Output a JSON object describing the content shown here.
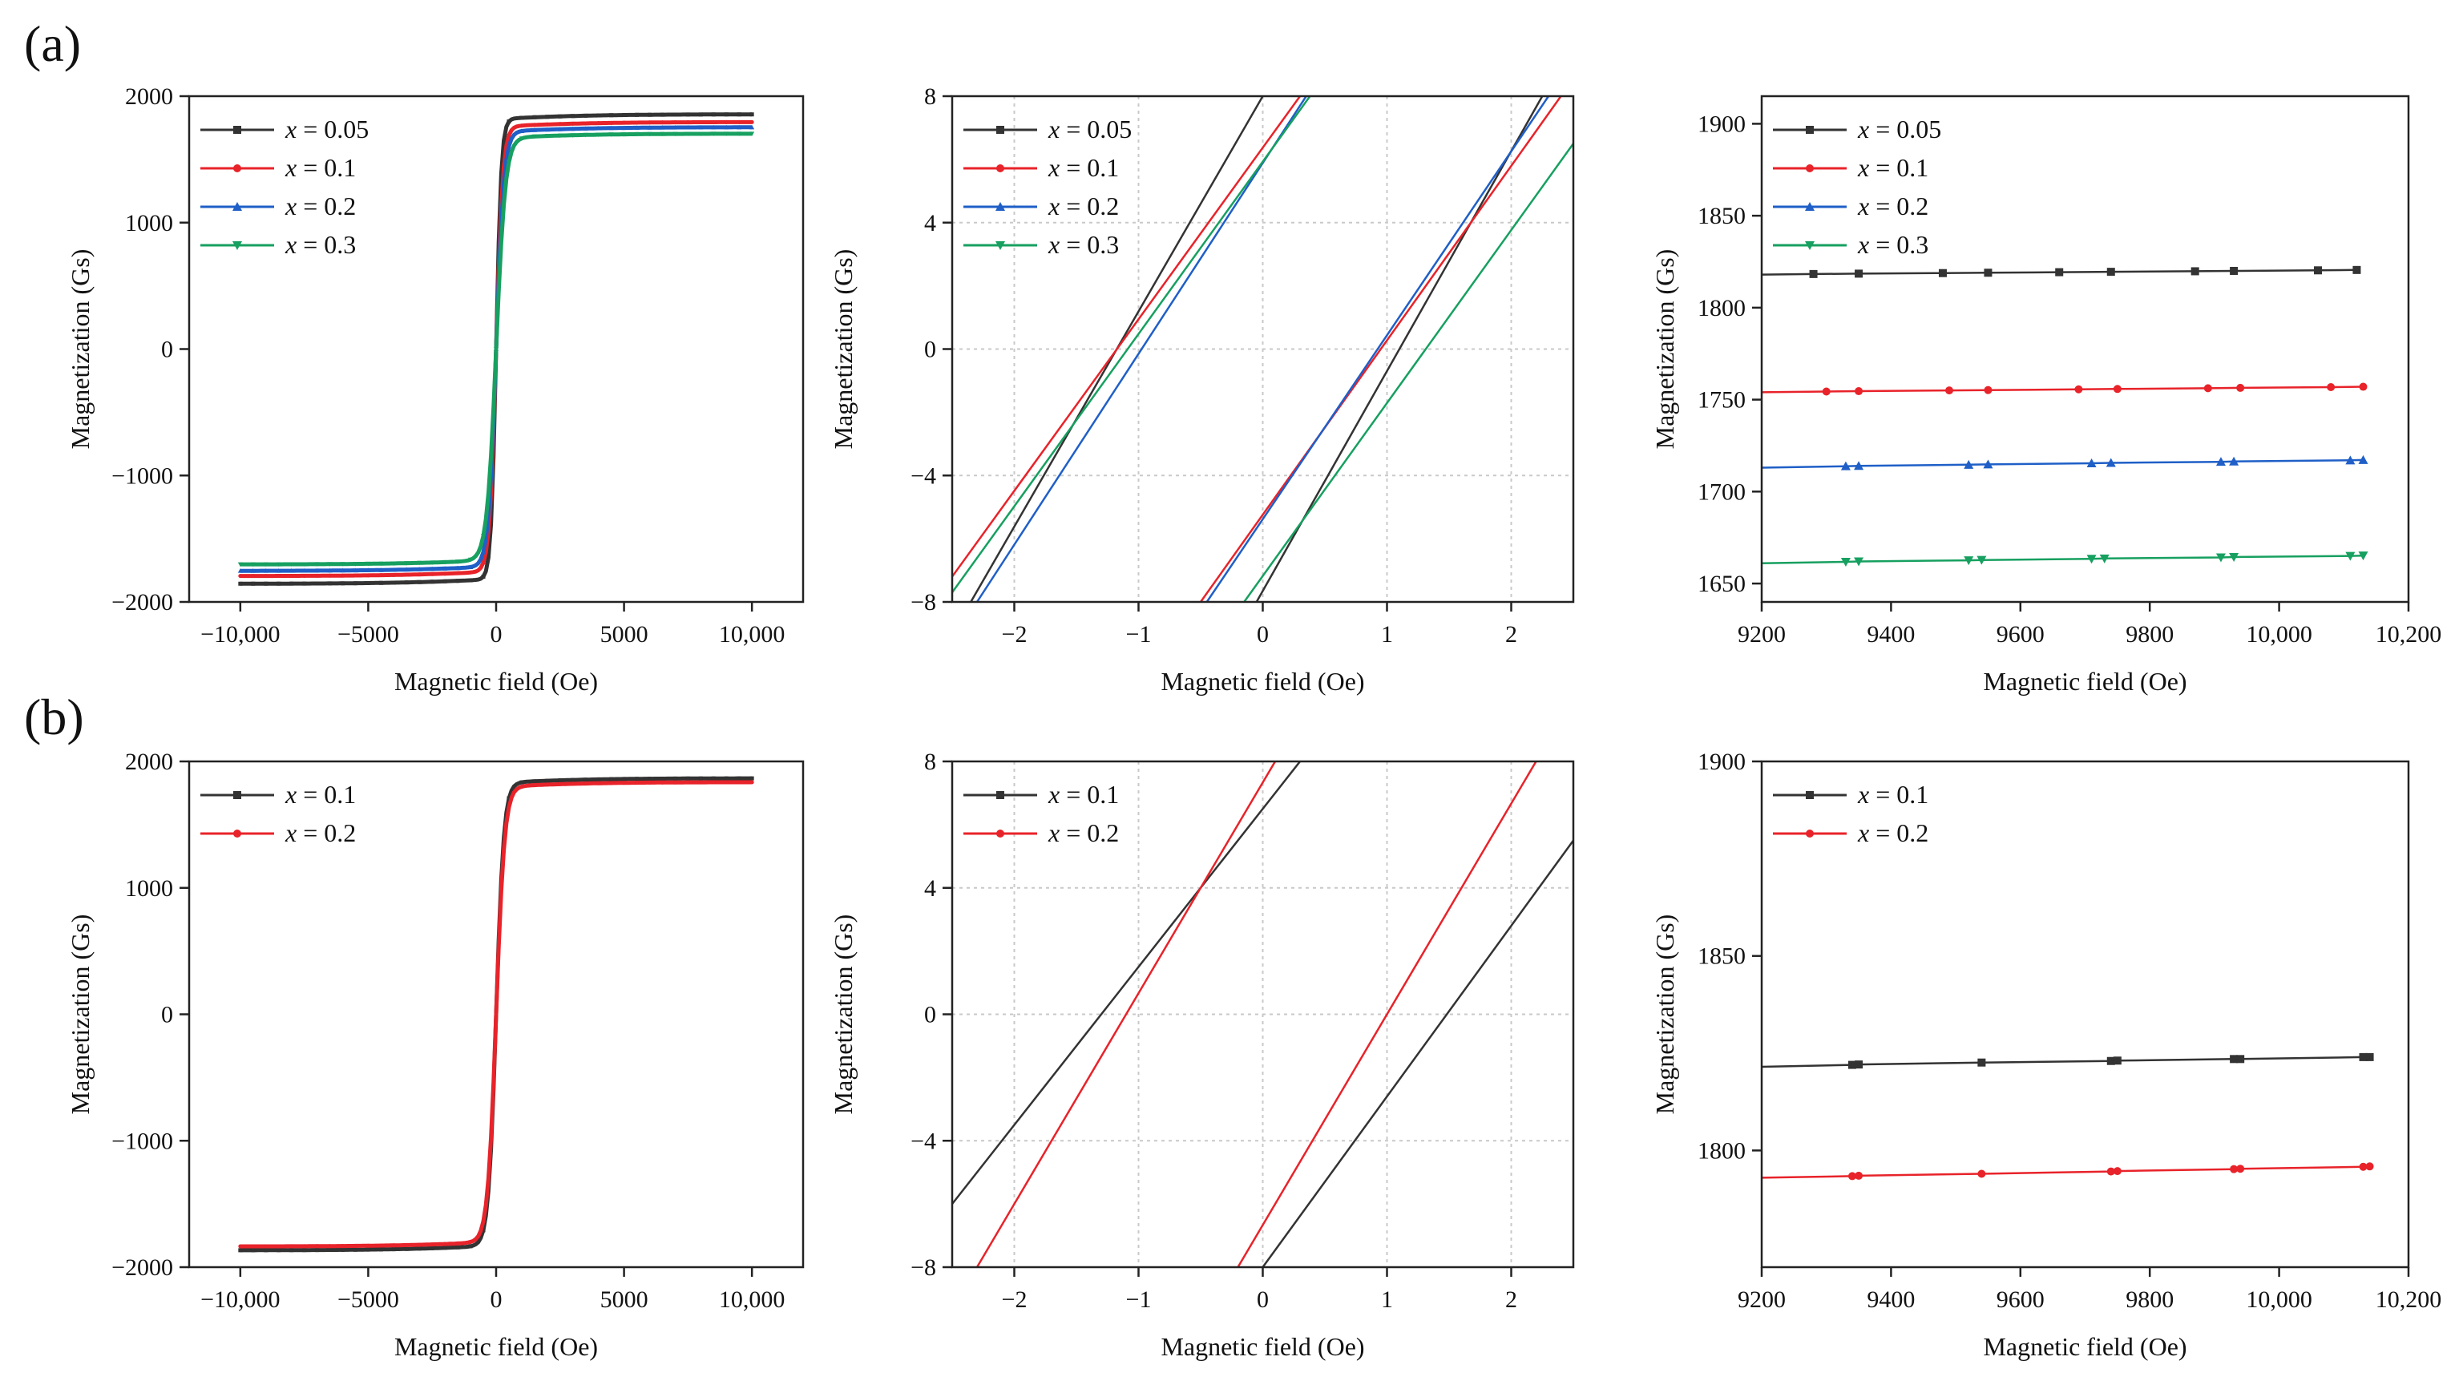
{
  "panel_labels": [
    "(a)",
    "(b)"
  ],
  "chart_data": [
    {
      "id": "a1",
      "type": "line",
      "row": "a",
      "col": 0,
      "xlabel": "Magnetic field (Oe)",
      "ylabel": "Magnetization (Gs)",
      "xlim": [
        -12000,
        12000
      ],
      "ylim": [
        -2000,
        2000
      ],
      "xticks": [
        -10000,
        -5000,
        0,
        5000,
        10000
      ],
      "xticklabels": [
        "−10,000",
        "−5000",
        "0",
        "5000",
        "10,000"
      ],
      "yticks": [
        -2000,
        -1000,
        0,
        1000,
        2000
      ],
      "yticklabels": [
        "−2000",
        "−1000",
        "0",
        "1000",
        "2000"
      ],
      "grid": false,
      "legend": "top-left",
      "series": [
        {
          "name": "x = 0.05",
          "color": "#333333",
          "marker": "square",
          "model": "loop",
          "ms": 1820,
          "hc": 0,
          "hk": 200,
          "x": [
            -10000,
            10000
          ]
        },
        {
          "name": "x = 0.1",
          "color": "#e8232a",
          "marker": "circle",
          "model": "loop",
          "ms": 1760,
          "hc": 0,
          "hk": 260,
          "x": [
            -10000,
            10000
          ]
        },
        {
          "name": "x = 0.2",
          "color": "#1f5fc7",
          "marker": "triangle",
          "model": "loop",
          "ms": 1720,
          "hc": 0,
          "hk": 300,
          "x": [
            -10000,
            10000
          ]
        },
        {
          "name": "x = 0.3",
          "color": "#17a060",
          "marker": "triangle-down",
          "model": "loop",
          "ms": 1670,
          "hc": 0,
          "hk": 360,
          "x": [
            -10000,
            10000
          ]
        }
      ]
    },
    {
      "id": "a2",
      "type": "line",
      "row": "a",
      "col": 1,
      "xlabel": "Magnetic field (Oe)",
      "ylabel": "Magnetization (Gs)",
      "xlim": [
        -2.5,
        2.5
      ],
      "ylim": [
        -8,
        8
      ],
      "xticks": [
        -2,
        -1,
        0,
        1,
        2
      ],
      "xticklabels": [
        "−2",
        "−1",
        "0",
        "1",
        "2"
      ],
      "yticks": [
        -8,
        -4,
        0,
        4,
        8
      ],
      "yticklabels": [
        "−8",
        "−4",
        "0",
        "4",
        "8"
      ],
      "grid": true,
      "legend": "top-left",
      "series": [
        {
          "name": "x = 0.05",
          "color": "#333333",
          "marker": "square",
          "model": "branches",
          "branches": [
            {
              "x": [
                -2.35,
                0.0
              ],
              "y": [
                -8,
                8
              ]
            },
            {
              "x": [
                -0.05,
                2.25
              ],
              "y": [
                -8,
                8
              ]
            }
          ]
        },
        {
          "name": "x = 0.1",
          "color": "#e8232a",
          "marker": "circle",
          "model": "branches",
          "branches": [
            {
              "x": [
                -2.5,
                0.3
              ],
              "y": [
                -7.2,
                8
              ]
            },
            {
              "x": [
                -0.5,
                2.4
              ],
              "y": [
                -8,
                8
              ]
            }
          ]
        },
        {
          "name": "x = 0.2",
          "color": "#1f5fc7",
          "marker": "triangle",
          "model": "branches",
          "branches": [
            {
              "x": [
                -2.3,
                0.35
              ],
              "y": [
                -8,
                8
              ]
            },
            {
              "x": [
                -0.45,
                2.3
              ],
              "y": [
                -8,
                8
              ]
            }
          ]
        },
        {
          "name": "x = 0.3",
          "color": "#17a060",
          "marker": "triangle-down",
          "model": "branches",
          "branches": [
            {
              "x": [
                -2.5,
                0.38
              ],
              "y": [
                -7.7,
                8
              ]
            },
            {
              "x": [
                -0.15,
                2.5
              ],
              "y": [
                -8,
                6.5
              ]
            }
          ]
        }
      ]
    },
    {
      "id": "a3",
      "type": "line",
      "row": "a",
      "col": 2,
      "xlabel": "Magnetic field (Oe)",
      "ylabel": "Magnetization (Gs)",
      "xlim": [
        9200,
        10200
      ],
      "ylim": [
        1640,
        1915
      ],
      "xticks": [
        9200,
        9400,
        9600,
        9800,
        10000,
        10200
      ],
      "xticklabels": [
        "9200",
        "9400",
        "9600",
        "9800",
        "10,000",
        "10,200"
      ],
      "yticks": [
        1650,
        1700,
        1750,
        1800,
        1850,
        1900
      ],
      "yticklabels": [
        "1650",
        "1700",
        "1750",
        "1800",
        "1850",
        "1900"
      ],
      "grid": false,
      "legend": "top-left",
      "series": [
        {
          "name": "x = 0.05",
          "color": "#333333",
          "marker": "square",
          "model": "points",
          "x": [
            9200,
            9280,
            9350,
            9480,
            9550,
            9660,
            9740,
            9870,
            9930,
            10060,
            10120
          ],
          "y": [
            1818,
            1818.3,
            1818.5,
            1818.8,
            1819,
            1819.3,
            1819.5,
            1819.8,
            1820,
            1820.3,
            1820.5
          ]
        },
        {
          "name": "x = 0.1",
          "color": "#e8232a",
          "marker": "circle",
          "model": "points",
          "x": [
            9200,
            9300,
            9350,
            9490,
            9550,
            9690,
            9750,
            9890,
            9940,
            10080,
            10130
          ],
          "y": [
            1754,
            1754.4,
            1754.6,
            1755,
            1755.2,
            1755.6,
            1755.8,
            1756.2,
            1756.4,
            1756.8,
            1757
          ]
        },
        {
          "name": "x = 0.2",
          "color": "#1f5fc7",
          "marker": "triangle",
          "model": "points",
          "x": [
            9200,
            9330,
            9350,
            9520,
            9550,
            9710,
            9740,
            9910,
            9930,
            10110,
            10130
          ],
          "y": [
            1713,
            1713.8,
            1714,
            1714.6,
            1714.8,
            1715.4,
            1715.6,
            1716.2,
            1716.4,
            1717,
            1717.2
          ]
        },
        {
          "name": "x = 0.3",
          "color": "#17a060",
          "marker": "triangle-down",
          "model": "points",
          "x": [
            9200,
            9330,
            9350,
            9520,
            9540,
            9710,
            9730,
            9910,
            9930,
            10110,
            10130
          ],
          "y": [
            1661,
            1661.8,
            1662,
            1662.6,
            1662.8,
            1663.4,
            1663.6,
            1664.2,
            1664.4,
            1665,
            1665.2
          ]
        }
      ]
    },
    {
      "id": "b1",
      "type": "line",
      "row": "b",
      "col": 0,
      "xlabel": "Magnetic field (Oe)",
      "ylabel": "Magnetization (Gs)",
      "xlim": [
        -12000,
        12000
      ],
      "ylim": [
        -2000,
        2000
      ],
      "xticks": [
        -10000,
        -5000,
        0,
        5000,
        10000
      ],
      "xticklabels": [
        "−10,000",
        "−5000",
        "0",
        "5000",
        "10,000"
      ],
      "yticks": [
        -2000,
        -1000,
        0,
        1000,
        2000
      ],
      "yticklabels": [
        "−2000",
        "−1000",
        "0",
        "1000",
        "2000"
      ],
      "grid": false,
      "legend": "top-left",
      "series": [
        {
          "name": "x = 0.1",
          "color": "#333333",
          "marker": "square",
          "model": "loop",
          "ms": 1830,
          "hc": 0,
          "hk": 300,
          "x": [
            -10000,
            10000
          ]
        },
        {
          "name": "x = 0.2",
          "color": "#e8232a",
          "marker": "circle",
          "model": "loop",
          "ms": 1800,
          "hc": 0,
          "hk": 330,
          "x": [
            -10000,
            10000
          ]
        }
      ]
    },
    {
      "id": "b2",
      "type": "line",
      "row": "b",
      "col": 1,
      "xlabel": "Magnetic field (Oe)",
      "ylabel": "Magnetization (Gs)",
      "xlim": [
        -2.5,
        2.5
      ],
      "ylim": [
        -8,
        8
      ],
      "xticks": [
        -2,
        -1,
        0,
        1,
        2
      ],
      "xticklabels": [
        "−2",
        "−1",
        "0",
        "1",
        "2"
      ],
      "yticks": [
        -8,
        -4,
        0,
        4,
        8
      ],
      "yticklabels": [
        "−8",
        "−4",
        "0",
        "4",
        "8"
      ],
      "grid": true,
      "legend": "top-left",
      "series": [
        {
          "name": "x = 0.1",
          "color": "#333333",
          "marker": "square",
          "model": "branches",
          "branches": [
            {
              "x": [
                -2.5,
                0.3
              ],
              "y": [
                -6,
                8
              ]
            },
            {
              "x": [
                0.0,
                2.5
              ],
              "y": [
                -8,
                5.5
              ]
            }
          ]
        },
        {
          "name": "x = 0.2",
          "color": "#e8232a",
          "marker": "circle",
          "model": "branches",
          "branches": [
            {
              "x": [
                -2.3,
                0.1
              ],
              "y": [
                -8,
                8
              ]
            },
            {
              "x": [
                -0.2,
                2.2
              ],
              "y": [
                -8,
                8
              ]
            }
          ]
        }
      ]
    },
    {
      "id": "b3",
      "type": "line",
      "row": "b",
      "col": 2,
      "xlabel": "Magnetic field (Oe)",
      "ylabel": "Magnetization (Gs)",
      "xlim": [
        9200,
        10200
      ],
      "ylim": [
        1770,
        1900
      ],
      "xticks": [
        9200,
        9400,
        9600,
        9800,
        10000,
        10200
      ],
      "xticklabels": [
        "9200",
        "9400",
        "9600",
        "9800",
        "10,000",
        "10,200"
      ],
      "yticks": [
        1800,
        1850,
        1900
      ],
      "yticklabels": [
        "1800",
        "1850",
        "1900"
      ],
      "grid": false,
      "legend": "top-left",
      "series": [
        {
          "name": "x = 0.1",
          "color": "#333333",
          "marker": "square",
          "model": "points",
          "x": [
            9200,
            9340,
            9350,
            9540,
            9740,
            9750,
            9930,
            9940,
            10130,
            10140
          ],
          "y": [
            1821.5,
            1822,
            1822.1,
            1822.6,
            1823,
            1823.1,
            1823.5,
            1823.5,
            1824,
            1824
          ]
        },
        {
          "name": "x = 0.2",
          "color": "#e8232a",
          "marker": "circle",
          "model": "points",
          "x": [
            9200,
            9340,
            9350,
            9540,
            9740,
            9750,
            9930,
            9940,
            10130,
            10140
          ],
          "y": [
            1793,
            1793.4,
            1793.5,
            1794,
            1794.6,
            1794.7,
            1795.2,
            1795.3,
            1795.8,
            1795.9
          ]
        }
      ]
    }
  ]
}
